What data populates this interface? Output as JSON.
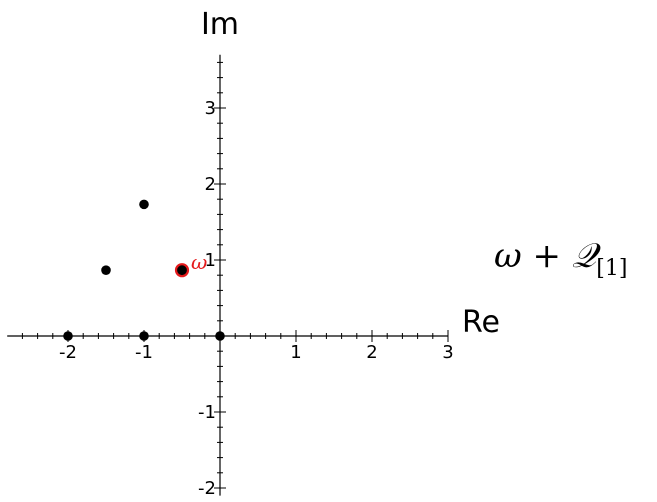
{
  "chart_data": {
    "type": "scatter",
    "xlabel": "Re",
    "ylabel": "Im",
    "xlim": [
      -2.8,
      3.0
    ],
    "ylim": [
      -2.1,
      3.7
    ],
    "xticks": [
      -2,
      -1,
      1,
      2,
      3
    ],
    "yticks": [
      -2,
      -1,
      1,
      2,
      3
    ],
    "xtick_labels": [
      "-2",
      "-1",
      "1",
      "2",
      "3"
    ],
    "ytick_labels": [
      "-2",
      "-1",
      "1",
      "2",
      "3"
    ],
    "grid": false,
    "points": [
      {
        "x": -2.0,
        "y": 0.0,
        "color": "#000000"
      },
      {
        "x": -1.0,
        "y": 0.0,
        "color": "#000000"
      },
      {
        "x": 0.0,
        "y": 0.0,
        "color": "#000000"
      },
      {
        "x": -1.5,
        "y": 0.866,
        "color": "#000000"
      },
      {
        "x": -1.0,
        "y": 1.732,
        "color": "#000000"
      },
      {
        "x": -0.5,
        "y": 0.866,
        "color": "#000000",
        "highlight": "#e41a1c",
        "label": "ω"
      }
    ]
  },
  "side_label": {
    "omega": "ω",
    "plus": " + ",
    "q": "𝒬",
    "subscript": "[1]"
  }
}
